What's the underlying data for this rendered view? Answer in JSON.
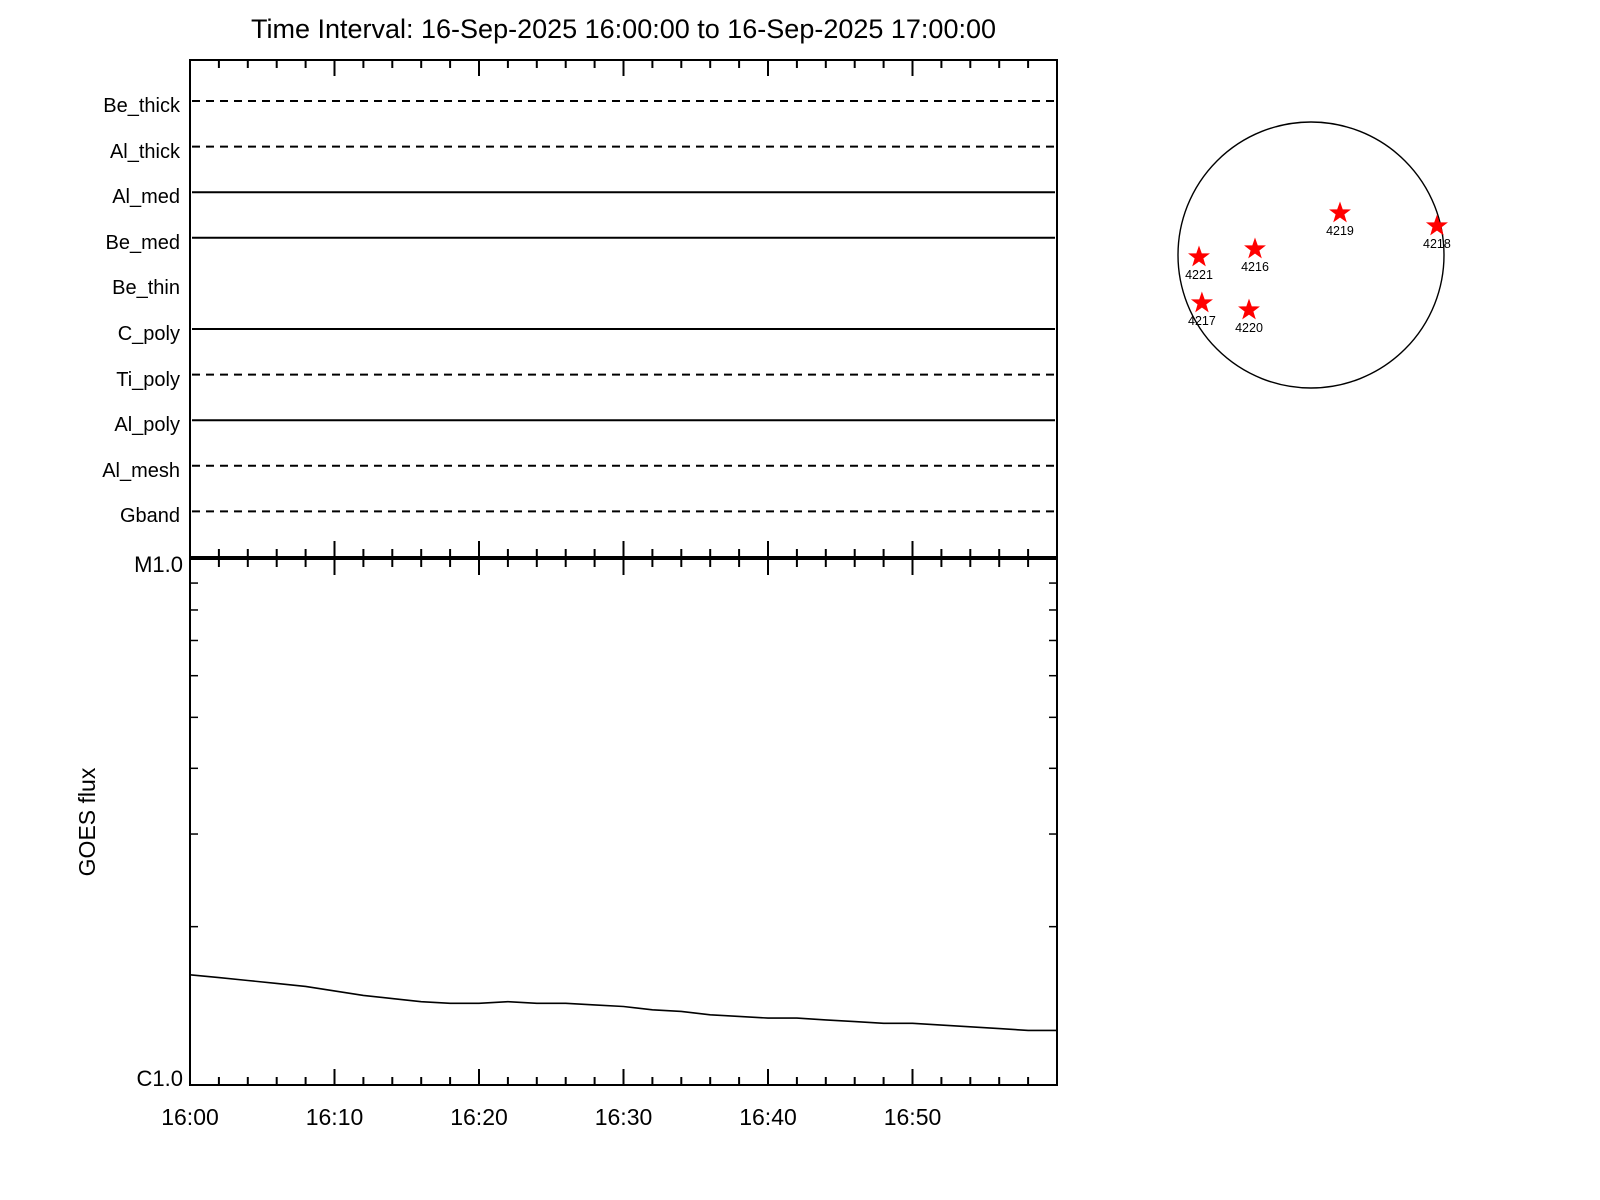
{
  "title": "Time Interval: 16-Sep-2025 16:00:00 to 16-Sep-2025 17:00:00",
  "chart_data": {
    "type": "line",
    "title": "Time Interval: 16-Sep-2025 16:00:00 to 16-Sep-2025 17:00:00",
    "filter_panel": {
      "description": "XRT filter observation timeline, one horizontal line per filter spanning the full time interval",
      "rows": [
        {
          "label": "Be_thick",
          "line": "dashed"
        },
        {
          "label": "Al_thick",
          "line": "dashed"
        },
        {
          "label": "Al_med",
          "line": "solid"
        },
        {
          "label": "Be_med",
          "line": "solid"
        },
        {
          "label": "Be_thin",
          "line": "none"
        },
        {
          "label": "C_poly",
          "line": "solid"
        },
        {
          "label": "Ti_poly",
          "line": "dashed"
        },
        {
          "label": "Al_poly",
          "line": "solid"
        },
        {
          "label": "Al_mesh",
          "line": "dashed"
        },
        {
          "label": "Gband",
          "line": "dashed"
        }
      ]
    },
    "goes_panel": {
      "ylabel": "GOES flux",
      "y_top_label": "M1.0",
      "y_bottom_label": "C1.0",
      "y_scale": "log",
      "ylim_wm2": [
        1e-06,
        1e-05
      ],
      "x_range_minutes": [
        0,
        60
      ],
      "minor_tick_minutes": 2,
      "x_ticks": [
        {
          "minute": 0,
          "label": "16:00"
        },
        {
          "minute": 10,
          "label": "16:10"
        },
        {
          "minute": 20,
          "label": "16:20"
        },
        {
          "minute": 30,
          "label": "16:30"
        },
        {
          "minute": 40,
          "label": "16:40"
        },
        {
          "minute": 50,
          "label": "16:50"
        }
      ],
      "series": {
        "name": "GOES flux",
        "x_minutes": [
          0,
          2,
          4,
          6,
          8,
          10,
          12,
          14,
          16,
          18,
          20,
          22,
          24,
          26,
          28,
          30,
          32,
          34,
          36,
          38,
          40,
          42,
          44,
          46,
          48,
          50,
          52,
          54,
          56,
          58,
          60
        ],
        "flux_c_class": [
          1.62,
          1.6,
          1.58,
          1.56,
          1.54,
          1.51,
          1.48,
          1.46,
          1.44,
          1.43,
          1.43,
          1.44,
          1.43,
          1.43,
          1.42,
          1.41,
          1.39,
          1.38,
          1.36,
          1.35,
          1.34,
          1.34,
          1.33,
          1.32,
          1.31,
          1.31,
          1.3,
          1.29,
          1.28,
          1.27,
          1.27
        ]
      }
    },
    "solar_disk": {
      "marker": "star",
      "marker_color": "#ff0000",
      "active_regions": [
        {
          "label": "4219",
          "x": 0.218,
          "y": -0.316
        },
        {
          "label": "4218",
          "x": 0.947,
          "y": -0.218
        },
        {
          "label": "4216",
          "x": -0.421,
          "y": -0.045
        },
        {
          "label": "4221",
          "x": -0.842,
          "y": 0.015
        },
        {
          "label": "4217",
          "x": -0.82,
          "y": 0.361
        },
        {
          "label": "4220",
          "x": -0.466,
          "y": 0.414
        }
      ]
    }
  }
}
